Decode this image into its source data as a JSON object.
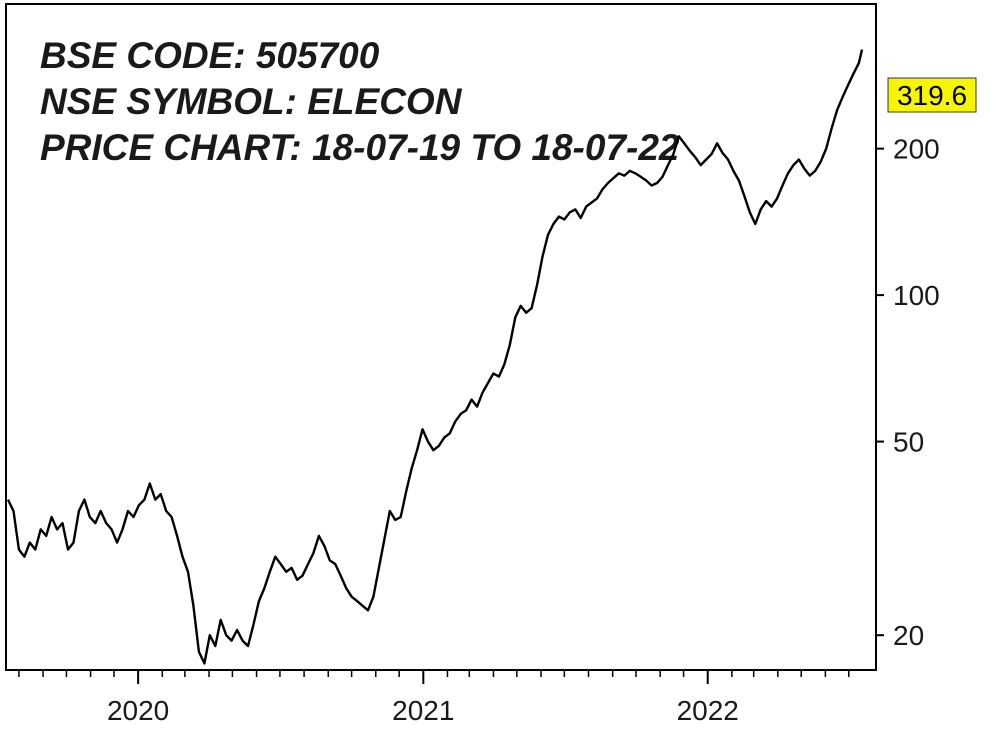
{
  "chart_data": {
    "type": "line",
    "title_lines": [
      "BSE CODE: 505700",
      "NSE SYMBOL: ELECON",
      "PRICE CHART: 18-07-19 TO 18-07-22"
    ],
    "y_scale": "log",
    "ylim": [
      15,
      500
    ],
    "y_ticks": [
      20,
      50,
      100,
      200
    ],
    "x_tick_labels": [
      "2020",
      "2021",
      "2022"
    ],
    "x_tick_dates": [
      "2020-01-01",
      "2021-01-01",
      "2022-01-01"
    ],
    "xlim": [
      "2019-07-18",
      "2022-07-18"
    ],
    "last_value": 319.6,
    "last_value_label": "319.6",
    "colors": {
      "line": "#000000",
      "last_value_badge": "#f5f500",
      "frame": "#000000"
    },
    "series": [
      {
        "points": [
          [
            "2019-07-18",
            38
          ],
          [
            "2019-07-25",
            36
          ],
          [
            "2019-08-01",
            30
          ],
          [
            "2019-08-08",
            29
          ],
          [
            "2019-08-15",
            31
          ],
          [
            "2019-08-22",
            30
          ],
          [
            "2019-08-29",
            33
          ],
          [
            "2019-09-05",
            32
          ],
          [
            "2019-09-12",
            35
          ],
          [
            "2019-09-19",
            33
          ],
          [
            "2019-09-26",
            34
          ],
          [
            "2019-10-03",
            30
          ],
          [
            "2019-10-10",
            31
          ],
          [
            "2019-10-17",
            36
          ],
          [
            "2019-10-24",
            38
          ],
          [
            "2019-10-31",
            35
          ],
          [
            "2019-11-07",
            34
          ],
          [
            "2019-11-14",
            36
          ],
          [
            "2019-11-21",
            34
          ],
          [
            "2019-11-28",
            33
          ],
          [
            "2019-12-05",
            31
          ],
          [
            "2019-12-12",
            33
          ],
          [
            "2019-12-19",
            36
          ],
          [
            "2019-12-26",
            35
          ],
          [
            "2020-01-02",
            37
          ],
          [
            "2020-01-09",
            38
          ],
          [
            "2020-01-16",
            41
          ],
          [
            "2020-01-23",
            38
          ],
          [
            "2020-01-30",
            39
          ],
          [
            "2020-02-06",
            36
          ],
          [
            "2020-02-13",
            35
          ],
          [
            "2020-02-20",
            32
          ],
          [
            "2020-02-27",
            29
          ],
          [
            "2020-03-05",
            27
          ],
          [
            "2020-03-12",
            23
          ],
          [
            "2020-03-19",
            18.5
          ],
          [
            "2020-03-26",
            17.5
          ],
          [
            "2020-04-02",
            20
          ],
          [
            "2020-04-09",
            19
          ],
          [
            "2020-04-16",
            21.5
          ],
          [
            "2020-04-23",
            20
          ],
          [
            "2020-04-30",
            19.5
          ],
          [
            "2020-05-07",
            20.5
          ],
          [
            "2020-05-14",
            19.5
          ],
          [
            "2020-05-21",
            19
          ],
          [
            "2020-05-28",
            21
          ],
          [
            "2020-06-04",
            23.5
          ],
          [
            "2020-06-11",
            25
          ],
          [
            "2020-06-18",
            27
          ],
          [
            "2020-06-25",
            29
          ],
          [
            "2020-07-02",
            28
          ],
          [
            "2020-07-09",
            27
          ],
          [
            "2020-07-16",
            27.5
          ],
          [
            "2020-07-23",
            26
          ],
          [
            "2020-07-30",
            26.5
          ],
          [
            "2020-08-06",
            28
          ],
          [
            "2020-08-13",
            29.5
          ],
          [
            "2020-08-20",
            32
          ],
          [
            "2020-08-27",
            30.5
          ],
          [
            "2020-09-03",
            28.5
          ],
          [
            "2020-09-10",
            28
          ],
          [
            "2020-09-17",
            26.5
          ],
          [
            "2020-09-24",
            25
          ],
          [
            "2020-10-01",
            24
          ],
          [
            "2020-10-08",
            23.5
          ],
          [
            "2020-10-15",
            23
          ],
          [
            "2020-10-22",
            22.5
          ],
          [
            "2020-10-29",
            24
          ],
          [
            "2020-11-05",
            27.5
          ],
          [
            "2020-11-12",
            31.5
          ],
          [
            "2020-11-19",
            36
          ],
          [
            "2020-11-26",
            34.5
          ],
          [
            "2020-12-03",
            35
          ],
          [
            "2020-12-10",
            39.5
          ],
          [
            "2020-12-17",
            44
          ],
          [
            "2020-12-24",
            48
          ],
          [
            "2020-12-31",
            53
          ],
          [
            "2021-01-07",
            50
          ],
          [
            "2021-01-14",
            48
          ],
          [
            "2021-01-21",
            49
          ],
          [
            "2021-01-28",
            51
          ],
          [
            "2021-02-04",
            52
          ],
          [
            "2021-02-11",
            55
          ],
          [
            "2021-02-18",
            57
          ],
          [
            "2021-02-25",
            58
          ],
          [
            "2021-03-04",
            61
          ],
          [
            "2021-03-11",
            59
          ],
          [
            "2021-03-18",
            63
          ],
          [
            "2021-03-25",
            66
          ],
          [
            "2021-04-01",
            69
          ],
          [
            "2021-04-08",
            68
          ],
          [
            "2021-04-15",
            72
          ],
          [
            "2021-04-22",
            79
          ],
          [
            "2021-04-29",
            90
          ],
          [
            "2021-05-06",
            95
          ],
          [
            "2021-05-13",
            92
          ],
          [
            "2021-05-20",
            94
          ],
          [
            "2021-05-27",
            105
          ],
          [
            "2021-06-03",
            120
          ],
          [
            "2021-06-10",
            133
          ],
          [
            "2021-06-17",
            140
          ],
          [
            "2021-06-24",
            145
          ],
          [
            "2021-07-01",
            143
          ],
          [
            "2021-07-08",
            148
          ],
          [
            "2021-07-15",
            150
          ],
          [
            "2021-07-22",
            144
          ],
          [
            "2021-07-29",
            152
          ],
          [
            "2021-08-05",
            155
          ],
          [
            "2021-08-12",
            158
          ],
          [
            "2021-08-19",
            165
          ],
          [
            "2021-08-26",
            170
          ],
          [
            "2021-09-02",
            174
          ],
          [
            "2021-09-09",
            178
          ],
          [
            "2021-09-16",
            176
          ],
          [
            "2021-09-23",
            180
          ],
          [
            "2021-09-30",
            178
          ],
          [
            "2021-10-07",
            175
          ],
          [
            "2021-10-14",
            172
          ],
          [
            "2021-10-21",
            168
          ],
          [
            "2021-10-28",
            170
          ],
          [
            "2021-11-04",
            175
          ],
          [
            "2021-11-11",
            185
          ],
          [
            "2021-11-18",
            195
          ],
          [
            "2021-11-25",
            212
          ],
          [
            "2021-12-02",
            205
          ],
          [
            "2021-12-09",
            198
          ],
          [
            "2021-12-16",
            192
          ],
          [
            "2021-12-23",
            185
          ],
          [
            "2021-12-30",
            190
          ],
          [
            "2022-01-06",
            195
          ],
          [
            "2022-01-13",
            205
          ],
          [
            "2022-01-20",
            196
          ],
          [
            "2022-01-27",
            190
          ],
          [
            "2022-02-03",
            180
          ],
          [
            "2022-02-10",
            172
          ],
          [
            "2022-02-17",
            160
          ],
          [
            "2022-02-24",
            148
          ],
          [
            "2022-03-03",
            140
          ],
          [
            "2022-03-10",
            150
          ],
          [
            "2022-03-17",
            156
          ],
          [
            "2022-03-24",
            152
          ],
          [
            "2022-03-31",
            158
          ],
          [
            "2022-04-07",
            168
          ],
          [
            "2022-04-14",
            178
          ],
          [
            "2022-04-21",
            185
          ],
          [
            "2022-04-28",
            190
          ],
          [
            "2022-05-05",
            182
          ],
          [
            "2022-05-12",
            176
          ],
          [
            "2022-05-19",
            180
          ],
          [
            "2022-05-26",
            188
          ],
          [
            "2022-06-02",
            200
          ],
          [
            "2022-06-09",
            220
          ],
          [
            "2022-06-16",
            240
          ],
          [
            "2022-06-23",
            255
          ],
          [
            "2022-06-30",
            270
          ],
          [
            "2022-07-07",
            285
          ],
          [
            "2022-07-14",
            300
          ],
          [
            "2022-07-18",
            319.6
          ]
        ]
      }
    ]
  }
}
